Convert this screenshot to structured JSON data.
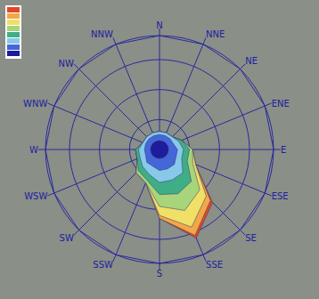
{
  "chart_data": {
    "type": "wind_rose",
    "categories": [
      "N",
      "NNE",
      "NE",
      "ENE",
      "E",
      "ESE",
      "SE",
      "SSE",
      "S",
      "SSW",
      "SW",
      "WSW",
      "W",
      "WNW",
      "NW",
      "NNW"
    ],
    "series": [
      {
        "color": "#1c1c9c",
        "values": [
          1.5,
          1.5,
          1.5,
          1.5,
          1.5,
          1.5,
          1.5,
          1.5,
          1.5,
          1.5,
          1.5,
          1.5,
          1.5,
          1.5,
          1.5,
          1.5
        ]
      },
      {
        "color": "#4466d8",
        "values": [
          1,
          1,
          1,
          1,
          1.5,
          1.5,
          2,
          2,
          2,
          1.5,
          1.5,
          1,
          1,
          1,
          1,
          1
        ]
      },
      {
        "color": "#88c8e8",
        "values": [
          0.5,
          0.5,
          0.5,
          1,
          1,
          1,
          2,
          2,
          2,
          1.5,
          1,
          1,
          1,
          0.5,
          0.5,
          0.5
        ]
      },
      {
        "color": "#3fae86",
        "values": [
          0,
          0,
          0,
          0.5,
          1,
          1,
          2,
          2.5,
          2,
          1,
          1,
          0.5,
          0.5,
          0,
          0,
          0
        ]
      },
      {
        "color": "#a8d47c",
        "values": [
          0,
          0,
          0,
          0,
          0.5,
          1,
          2,
          3,
          2,
          0.5,
          0.5,
          0,
          0,
          0,
          0,
          0
        ]
      },
      {
        "color": "#f0e068",
        "values": [
          0,
          0,
          0,
          0,
          0,
          0.5,
          1.5,
          3,
          1.5,
          0,
          0,
          0,
          0,
          0,
          0,
          0
        ]
      },
      {
        "color": "#f0a848",
        "values": [
          0,
          0,
          0,
          0,
          0,
          0,
          1,
          1.5,
          0.5,
          0,
          0,
          0,
          0,
          0,
          0,
          0
        ]
      },
      {
        "color": "#e04828",
        "values": [
          0,
          0,
          0,
          0,
          0,
          0,
          0.5,
          0.5,
          0,
          0,
          0,
          0,
          0,
          0,
          0,
          0
        ]
      }
    ],
    "ylim": [
      0,
      19
    ],
    "stacked": true,
    "grid": true,
    "tick_labels": "x",
    "legend": "top-left"
  }
}
